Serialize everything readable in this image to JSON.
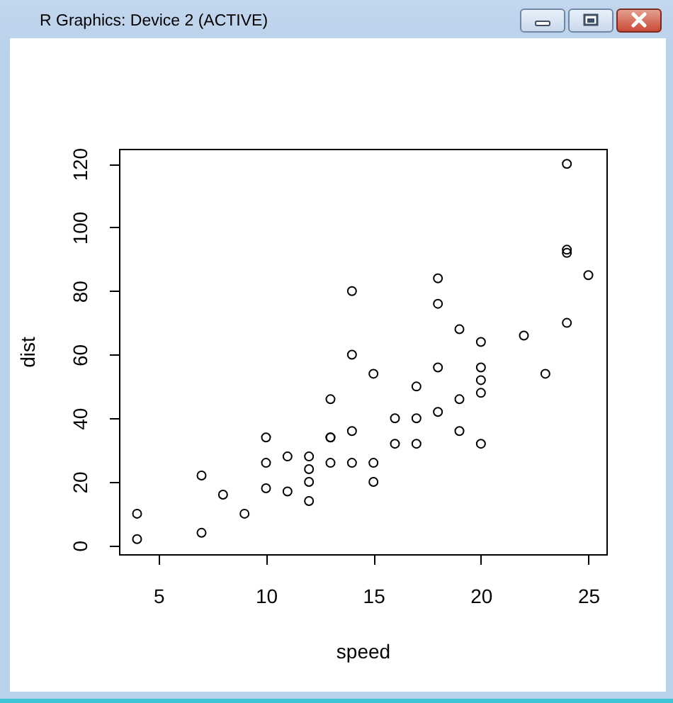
{
  "chart_data": {
    "type": "scatter",
    "xlabel": "speed",
    "ylabel": "dist",
    "annotations": [
      "R Graphics: Device 2 (ACTIVE)"
    ],
    "x": [
      4,
      4,
      7,
      7,
      8,
      9,
      10,
      10,
      10,
      11,
      11,
      12,
      12,
      12,
      12,
      13,
      13,
      13,
      13,
      14,
      14,
      14,
      14,
      15,
      15,
      15,
      16,
      16,
      17,
      17,
      17,
      18,
      18,
      18,
      18,
      19,
      19,
      19,
      20,
      20,
      20,
      20,
      20,
      22,
      23,
      24,
      24,
      24,
      24,
      25
    ],
    "values": [
      2,
      10,
      4,
      22,
      16,
      10,
      18,
      26,
      34,
      17,
      28,
      14,
      20,
      24,
      28,
      26,
      34,
      34,
      46,
      26,
      36,
      60,
      80,
      20,
      26,
      54,
      32,
      40,
      32,
      40,
      50,
      42,
      56,
      76,
      84,
      36,
      46,
      68,
      32,
      48,
      52,
      56,
      64,
      66,
      54,
      70,
      92,
      93,
      120,
      85
    ],
    "color": "#000000",
    "marker": "circle",
    "xlim": [
      3.16,
      25.84
    ],
    "ylim": [
      -2.72,
      124.72
    ],
    "xticks": [
      5,
      10,
      15,
      20,
      25
    ],
    "yticks": [
      0,
      20,
      40,
      60,
      80,
      100,
      120
    ]
  }
}
